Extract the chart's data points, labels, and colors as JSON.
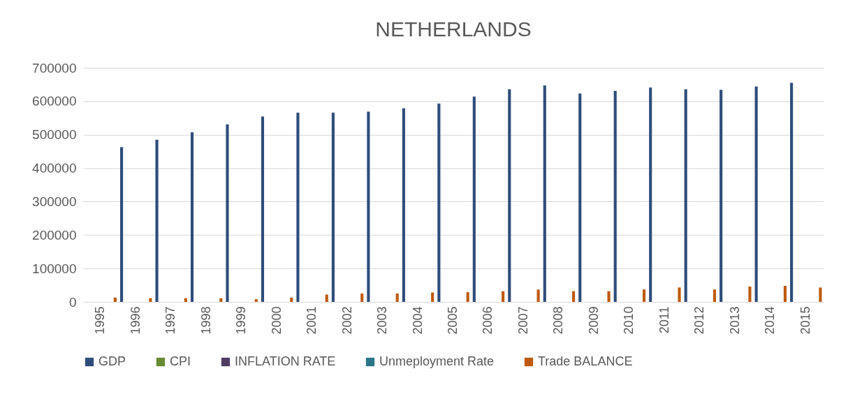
{
  "chart_data": {
    "type": "bar",
    "title": "NETHERLANDS",
    "categories": [
      "1995",
      "1996",
      "1997",
      "1998",
      "1999",
      "2000",
      "2001",
      "2002",
      "2003",
      "2004",
      "2005",
      "2006",
      "2007",
      "2008",
      "2009",
      "2010",
      "2011",
      "2012",
      "2013",
      "2014",
      "2015"
    ],
    "series": [
      {
        "name": "GDP",
        "color": "#2e4d7b",
        "values": [
          null,
          463000,
          485000,
          507000,
          531000,
          554000,
          566000,
          566000,
          569000,
          579000,
          593000,
          614000,
          636000,
          647000,
          623000,
          631000,
          641000,
          636000,
          634000,
          644000,
          655000
        ]
      },
      {
        "name": "CPI",
        "color": "#678b33",
        "values": [
          null,
          null,
          null,
          null,
          null,
          null,
          null,
          null,
          null,
          null,
          null,
          null,
          null,
          null,
          null,
          null,
          null,
          null,
          null,
          null,
          null
        ]
      },
      {
        "name": "INFLATION RATE",
        "color": "#4f3c63",
        "values": [
          null,
          null,
          null,
          null,
          null,
          null,
          null,
          null,
          null,
          null,
          null,
          null,
          null,
          null,
          null,
          null,
          null,
          null,
          null,
          null,
          null
        ]
      },
      {
        "name": "Unmeployment Rate",
        "color": "#2a7689",
        "values": [
          null,
          null,
          null,
          null,
          null,
          null,
          null,
          null,
          null,
          null,
          null,
          null,
          null,
          null,
          null,
          null,
          null,
          null,
          null,
          null,
          null
        ]
      },
      {
        "name": "Trade BALANCE",
        "color": "#bd5a0e",
        "values": [
          13000,
          11000,
          11000,
          11000,
          8000,
          13000,
          22000,
          25000,
          25000,
          28000,
          29000,
          32000,
          37000,
          32000,
          32000,
          37000,
          43000,
          37000,
          46000,
          48000,
          43000
        ]
      }
    ],
    "ylim": [
      0,
      700000
    ],
    "yticks": [
      0,
      100000,
      200000,
      300000,
      400000,
      500000,
      600000,
      700000
    ],
    "grid": "y",
    "legend": "bottom"
  }
}
